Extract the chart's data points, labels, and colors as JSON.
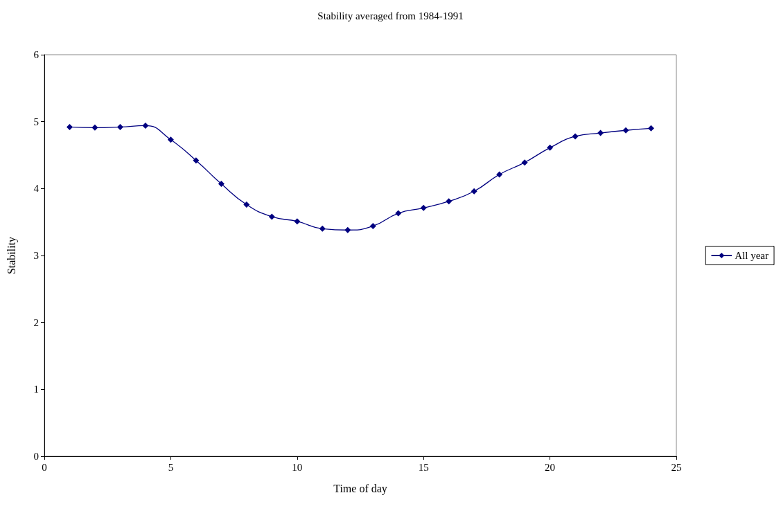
{
  "chart_data": {
    "type": "line",
    "title": "Stability averaged from 1984-1991",
    "xlabel": "Time of day",
    "ylabel": "Stability",
    "x": [
      1,
      2,
      3,
      4,
      5,
      6,
      7,
      8,
      9,
      10,
      11,
      12,
      13,
      14,
      15,
      16,
      17,
      18,
      19,
      20,
      21,
      22,
      23,
      24
    ],
    "series": [
      {
        "name": "All year",
        "color": "#000080",
        "values": [
          4.92,
          4.91,
          4.92,
          4.94,
          4.73,
          4.42,
          4.07,
          3.76,
          3.58,
          3.51,
          3.4,
          3.38,
          3.44,
          3.63,
          3.71,
          3.81,
          3.96,
          4.21,
          4.39,
          4.61,
          4.78,
          4.83,
          4.87,
          4.9
        ]
      }
    ],
    "xlim": [
      0,
      25
    ],
    "xticks": [
      0,
      5,
      10,
      15,
      20,
      25
    ],
    "ylim": [
      0,
      6
    ],
    "yticks": [
      0,
      1,
      2,
      3,
      4,
      5,
      6
    ],
    "grid": false,
    "legend": "right",
    "marker": "diamond",
    "line_style": "solid"
  }
}
